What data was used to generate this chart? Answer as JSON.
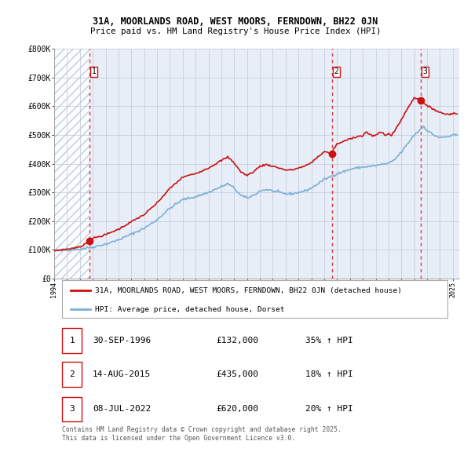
{
  "title1": "31A, MOORLANDS ROAD, WEST MOORS, FERNDOWN, BH22 0JN",
  "title2": "Price paid vs. HM Land Registry's House Price Index (HPI)",
  "ylim": [
    0,
    800000
  ],
  "yticks": [
    0,
    100000,
    200000,
    300000,
    400000,
    500000,
    600000,
    700000,
    800000
  ],
  "ytick_labels": [
    "£0",
    "£100K",
    "£200K",
    "£300K",
    "£400K",
    "£500K",
    "£600K",
    "£700K",
    "£800K"
  ],
  "hpi_color": "#7bafd4",
  "price_color": "#cc1111",
  "vline_color": "#dd3333",
  "background_color": "#e8eef8",
  "grid_color": "#c0c8d8",
  "sale_year_floats": [
    1996.75,
    2015.62,
    2022.52
  ],
  "sale_prices": [
    132000,
    435000,
    620000
  ],
  "sale_labels": [
    "1",
    "2",
    "3"
  ],
  "legend_label_red": "31A, MOORLANDS ROAD, WEST MOORS, FERNDOWN, BH22 0JN (detached house)",
  "legend_label_blue": "HPI: Average price, detached house, Dorset",
  "table_rows": [
    [
      "1",
      "30-SEP-1996",
      "£132,000",
      "35% ↑ HPI"
    ],
    [
      "2",
      "14-AUG-2015",
      "£435,000",
      "18% ↑ HPI"
    ],
    [
      "3",
      "08-JUL-2022",
      "£620,000",
      "20% ↑ HPI"
    ]
  ],
  "footnote": "Contains HM Land Registry data © Crown copyright and database right 2025.\nThis data is licensed under the Open Government Licence v3.0.",
  "xmin": 1994.0,
  "xmax": 2025.5,
  "hatch_end": 1996.75
}
